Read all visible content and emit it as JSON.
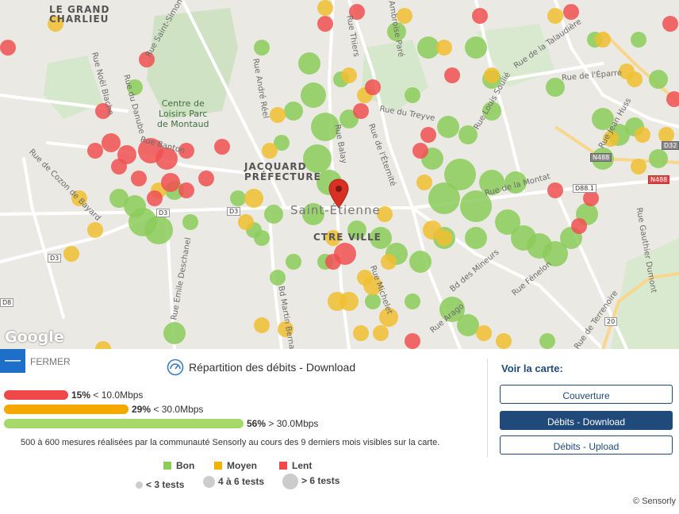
{
  "map": {
    "labels": {
      "le_grand_charlieu": "LE GRAND\nCHARLIEU",
      "centre_loisirs": "Centre de\nLoisirs Parc\nde Montaud",
      "jacquard": "JACQUARD\nPRÉFECTURE",
      "saint_etienne": "Saint-Étienne",
      "ctre_ville": "CTRE VILLE",
      "rue_saint_simon": "Rue Saint-Simon",
      "rue_noel_blache": "Rue Noël Blache",
      "rue_danube": "Rue du Danube",
      "rue_banton": "Rue Banton",
      "rue_cozon": "Rue de Cozon de Bayard",
      "rue_andre_reel": "Rue André Réel",
      "rue_balay": "Rue Balay",
      "rue_eternite": "Rue de l'Éternité",
      "rue_treyve": "Rue du Treyve",
      "rue_louis_soulie": "Rue Louis Soulié",
      "rue_montat": "Rue de la Montat",
      "rue_epare": "Rue de l'Éparre",
      "rue_talaudiere": "Rue de la Talaudière",
      "rue_michelet": "Rue Michelet",
      "rue_arago": "Rue Arago",
      "rue_mineurs": "Bd des Mineurs",
      "rue_fenelon": "Rue Fénelon",
      "rue_terrenoire": "Rue de Terrenoire",
      "rue_gauthier": "Rue Gauthier Dumont",
      "bd_martin": "Bd Martin Bernard",
      "rue_deschanel": "Rue Emile Deschanel",
      "rue_jean_huss": "Rue Jean Huss",
      "rue_ambroise": "Rue Ambroise Paré",
      "rue_thiers": "Rue Thiers"
    },
    "road_signs": {
      "d3_a": "D3",
      "d3_b": "D3",
      "d3_c": "D3",
      "d8": "D8",
      "n488_a": "N488",
      "n488_b": "N488",
      "d88": "D88.1",
      "d32": "D32",
      "r20": "20"
    },
    "google_logo": "Google"
  },
  "panel": {
    "close_label": "FERMER",
    "title": "Répartition des débits - Download",
    "bars": [
      {
        "percent": "15%",
        "label": "< 10.0Mbps",
        "color": "#f04848",
        "fraction": 0.15
      },
      {
        "percent": "29%",
        "label": "< 30.0Mbps",
        "color": "#f5a800",
        "fraction": 0.29
      },
      {
        "percent": "56%",
        "label": "> 30.0Mbps",
        "color": "#a6d96a",
        "fraction": 0.56
      }
    ],
    "footnote": "500 à 600 mesures réalisées par la communauté Sensorly au cours des 9 derniers mois visibles sur la carte.",
    "legend": [
      {
        "label": "Bon",
        "color": "#8ccc5a"
      },
      {
        "label": "Moyen",
        "color": "#f0b400"
      },
      {
        "label": "Lent",
        "color": "#f04848"
      }
    ],
    "sizes": [
      {
        "label": "< 3 tests"
      },
      {
        "label": "4 à 6 tests"
      },
      {
        "label": "> 6 tests"
      }
    ],
    "voir_title": "Voir la carte:",
    "buttons": [
      {
        "label": "Couverture",
        "active": false
      },
      {
        "label": "Débits - Download",
        "active": true
      },
      {
        "label": "Débits - Upload",
        "active": false
      }
    ],
    "copyright": "© Sensorly"
  }
}
